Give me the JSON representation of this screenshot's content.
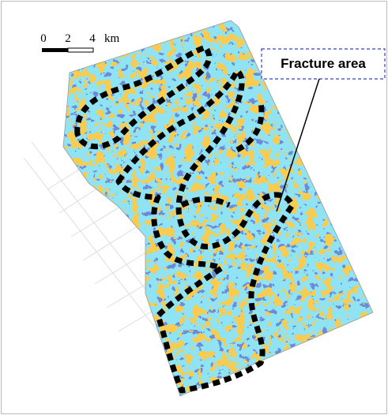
{
  "scale_bar": {
    "labels": [
      "0",
      "2",
      "4"
    ],
    "unit": "km"
  },
  "annotation": {
    "label": "Fracture area"
  }
}
